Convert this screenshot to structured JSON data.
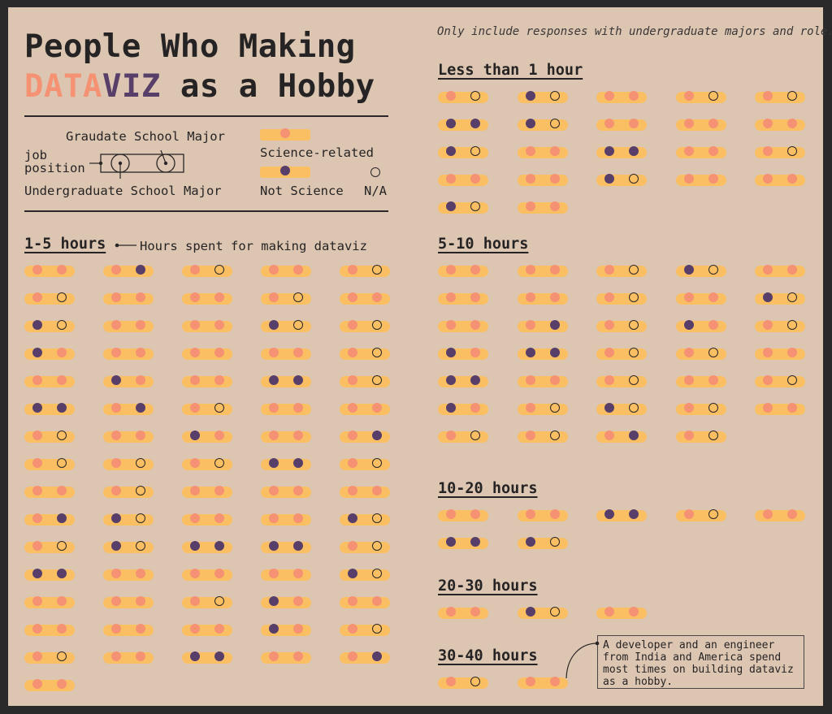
{
  "title": {
    "line1": "People Who Making",
    "data_word": "DATA",
    "viz_word": "VIZ",
    "rest": " as a Hobby"
  },
  "subtitle": "Only include responses with undergraduate majors and role.",
  "legend": {
    "grad_label": "Graudate School Major",
    "job_label": "job\nposition",
    "undergrad_label": "Undergraduate School Major",
    "science_label": "Science-related",
    "not_science_label": "Not Science",
    "na_label": "N/A"
  },
  "hours_label": "Hours spent for making dataviz",
  "annotation": "A developer and an engineer\nfrom India and America spend\nmost times on building dataviz\nas a hobby.",
  "colors": {
    "background": "#dcc6b2",
    "pill": "#fbbf63",
    "science": "#f59274",
    "not_science": "#583f6a",
    "na": "#2a2627",
    "data_word": "#f59274",
    "viz_word": "#583f6a"
  },
  "chart_data": {
    "type": "unit",
    "encoding": {
      "pill": "job position",
      "left_dot": "Undergraduate School Major",
      "right_dot": "Graduate School Major",
      "S": "Science-related",
      "N": "Not Science",
      "X": "N/A"
    },
    "groups": [
      {
        "label": "1-5 hours",
        "people": [
          [
            "S",
            "S"
          ],
          [
            "S",
            "N"
          ],
          [
            "S",
            "X"
          ],
          [
            "S",
            "S"
          ],
          [
            "S",
            "X"
          ],
          [
            "S",
            "X"
          ],
          [
            "S",
            "S"
          ],
          [
            "S",
            "S"
          ],
          [
            "S",
            "X"
          ],
          [
            "S",
            "S"
          ],
          [
            "N",
            "X"
          ],
          [
            "S",
            "S"
          ],
          [
            "S",
            "S"
          ],
          [
            "N",
            "X"
          ],
          [
            "S",
            "X"
          ],
          [
            "N",
            "S"
          ],
          [
            "S",
            "S"
          ],
          [
            "S",
            "S"
          ],
          [
            "S",
            "S"
          ],
          [
            "S",
            "X"
          ],
          [
            "S",
            "S"
          ],
          [
            "N",
            "S"
          ],
          [
            "S",
            "S"
          ],
          [
            "N",
            "N"
          ],
          [
            "S",
            "X"
          ],
          [
            "N",
            "N"
          ],
          [
            "S",
            "N"
          ],
          [
            "S",
            "X"
          ],
          [
            "S",
            "S"
          ],
          [
            "S",
            "S"
          ],
          [
            "S",
            "X"
          ],
          [
            "S",
            "S"
          ],
          [
            "N",
            "S"
          ],
          [
            "S",
            "S"
          ],
          [
            "S",
            "N"
          ],
          [
            "S",
            "X"
          ],
          [
            "S",
            "X"
          ],
          [
            "S",
            "X"
          ],
          [
            "N",
            "N"
          ],
          [
            "S",
            "X"
          ],
          [
            "S",
            "S"
          ],
          [
            "S",
            "X"
          ],
          [
            "S",
            "S"
          ],
          [
            "S",
            "S"
          ],
          [
            "S",
            "S"
          ],
          [
            "S",
            "N"
          ],
          [
            "N",
            "X"
          ],
          [
            "S",
            "S"
          ],
          [
            "S",
            "S"
          ],
          [
            "N",
            "X"
          ],
          [
            "S",
            "X"
          ],
          [
            "N",
            "X"
          ],
          [
            "N",
            "N"
          ],
          [
            "N",
            "N"
          ],
          [
            "S",
            "X"
          ],
          [
            "N",
            "N"
          ],
          [
            "S",
            "S"
          ],
          [
            "S",
            "S"
          ],
          [
            "S",
            "S"
          ],
          [
            "N",
            "X"
          ],
          [
            "S",
            "S"
          ],
          [
            "S",
            "S"
          ],
          [
            "S",
            "X"
          ],
          [
            "N",
            "S"
          ],
          [
            "S",
            "S"
          ],
          [
            "S",
            "S"
          ],
          [
            "S",
            "S"
          ],
          [
            "S",
            "S"
          ],
          [
            "N",
            "S"
          ],
          [
            "S",
            "X"
          ],
          [
            "S",
            "X"
          ],
          [
            "S",
            "S"
          ],
          [
            "N",
            "N"
          ],
          [
            "S",
            "S"
          ],
          [
            "S",
            "N"
          ],
          [
            "S",
            "S"
          ]
        ]
      },
      {
        "label": "Less than 1 hour",
        "people": [
          [
            "S",
            "X"
          ],
          [
            "N",
            "X"
          ],
          [
            "S",
            "S"
          ],
          [
            "S",
            "X"
          ],
          [
            "S",
            "X"
          ],
          [
            "N",
            "N"
          ],
          [
            "N",
            "X"
          ],
          [
            "S",
            "S"
          ],
          [
            "S",
            "S"
          ],
          [
            "S",
            "S"
          ],
          [
            "N",
            "X"
          ],
          [
            "S",
            "S"
          ],
          [
            "N",
            "N"
          ],
          [
            "S",
            "S"
          ],
          [
            "S",
            "X"
          ],
          [
            "S",
            "S"
          ],
          [
            "S",
            "S"
          ],
          [
            "N",
            "X"
          ],
          [
            "S",
            "S"
          ],
          [
            "S",
            "S"
          ],
          [
            "N",
            "X"
          ],
          [
            "S",
            "S"
          ]
        ]
      },
      {
        "label": "5-10 hours",
        "people": [
          [
            "S",
            "S"
          ],
          [
            "S",
            "S"
          ],
          [
            "S",
            "X"
          ],
          [
            "N",
            "X"
          ],
          [
            "S",
            "S"
          ],
          [
            "S",
            "S"
          ],
          [
            "S",
            "S"
          ],
          [
            "S",
            "X"
          ],
          [
            "S",
            "S"
          ],
          [
            "N",
            "X"
          ],
          [
            "S",
            "S"
          ],
          [
            "S",
            "N"
          ],
          [
            "S",
            "X"
          ],
          [
            "N",
            "S"
          ],
          [
            "S",
            "X"
          ],
          [
            "N",
            "S"
          ],
          [
            "N",
            "N"
          ],
          [
            "S",
            "X"
          ],
          [
            "S",
            "X"
          ],
          [
            "S",
            "S"
          ],
          [
            "N",
            "N"
          ],
          [
            "S",
            "S"
          ],
          [
            "S",
            "X"
          ],
          [
            "S",
            "S"
          ],
          [
            "S",
            "X"
          ],
          [
            "N",
            "S"
          ],
          [
            "S",
            "X"
          ],
          [
            "N",
            "X"
          ],
          [
            "S",
            "X"
          ],
          [
            "S",
            "S"
          ],
          [
            "S",
            "X"
          ],
          [
            "S",
            "X"
          ],
          [
            "S",
            "N"
          ],
          [
            "S",
            "X"
          ]
        ]
      },
      {
        "label": "10-20 hours",
        "people": [
          [
            "S",
            "S"
          ],
          [
            "S",
            "S"
          ],
          [
            "N",
            "N"
          ],
          [
            "S",
            "X"
          ],
          [
            "S",
            "S"
          ],
          [
            "N",
            "N"
          ],
          [
            "N",
            "X"
          ]
        ]
      },
      {
        "label": "20-30 hours",
        "people": [
          [
            "S",
            "S"
          ],
          [
            "N",
            "X"
          ],
          [
            "S",
            "S"
          ]
        ]
      },
      {
        "label": "30-40 hours",
        "people": [
          [
            "S",
            "X"
          ],
          [
            "S",
            "S"
          ]
        ]
      }
    ]
  }
}
